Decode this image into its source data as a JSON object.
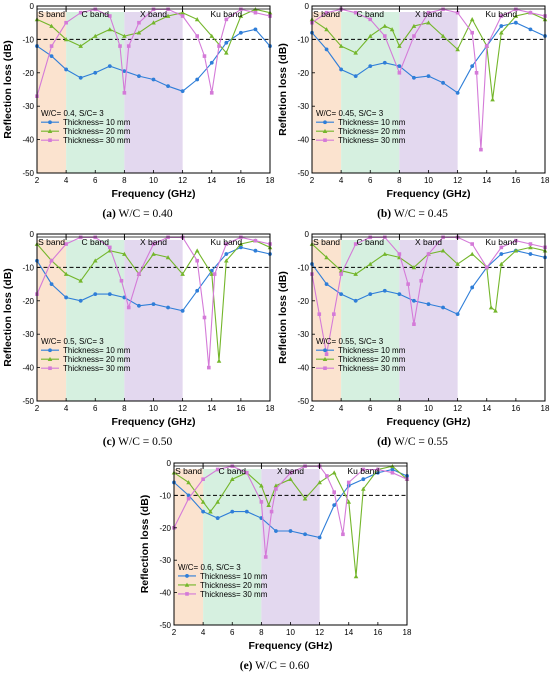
{
  "colors": {
    "s_band": "#fbe3cf",
    "c_band": "#d6f0e0",
    "x_band": "#e3d8ef",
    "t10": "#2f7ed8",
    "t20": "#74b62b",
    "t30": "#d47ad8",
    "ref": "#000000"
  },
  "chart_data": [
    {
      "id": "a",
      "type": "line",
      "caption_label": "(a)",
      "caption_text": "W/C = 0.40",
      "legend_title": "W/C= 0.4, S/C= 3",
      "xlabel": "Frequency (GHz)",
      "ylabel": "Reflection loss (dB)",
      "xlim": [
        2,
        18
      ],
      "ylim": [
        -50,
        0
      ],
      "xticks": [
        2,
        4,
        6,
        8,
        10,
        12,
        14,
        16,
        18
      ],
      "yticks": [
        0,
        -10,
        -20,
        -30,
        -40,
        -50
      ],
      "reference_line": -10,
      "bands": [
        {
          "name": "S band",
          "from": 2,
          "to": 4
        },
        {
          "name": "C band",
          "from": 4,
          "to": 8
        },
        {
          "name": "X band",
          "from": 8,
          "to": 12
        },
        {
          "name": "Ku band",
          "from": 12,
          "to": 18
        }
      ],
      "series": [
        {
          "name": "Thickness= 10 mm",
          "x": [
            2,
            3,
            4,
            5,
            6,
            7,
            8,
            9,
            10,
            11,
            12,
            13,
            14,
            15,
            16,
            17,
            18
          ],
          "y": [
            -12,
            -15,
            -19,
            -21.5,
            -20,
            -18,
            -19.5,
            -21,
            -22,
            -24,
            -25.5,
            -22,
            -17,
            -11,
            -8,
            -7,
            -12
          ]
        },
        {
          "name": "Thickness= 20 mm",
          "x": [
            2,
            3,
            4,
            5,
            6,
            7,
            8,
            9,
            10,
            11,
            12,
            13,
            14,
            15,
            16,
            17,
            18
          ],
          "y": [
            -4,
            -6,
            -10,
            -12,
            -9,
            -7,
            -9,
            -8,
            -5,
            -3,
            -2,
            -4,
            -9,
            -14,
            -3,
            -1,
            -2
          ]
        },
        {
          "name": "Thickness= 30 mm",
          "x": [
            2,
            3,
            4,
            5,
            6,
            7,
            7.7,
            8,
            8.3,
            9,
            10,
            11,
            12,
            13,
            13.5,
            14,
            14.5,
            15,
            16,
            17,
            18
          ],
          "y": [
            -27,
            -12,
            -5,
            -2,
            -1,
            -3,
            -12,
            -26,
            -12,
            -5,
            -1,
            -1,
            -3,
            -9,
            -15,
            -26,
            -12,
            -4,
            -1,
            -2,
            -3
          ]
        }
      ]
    },
    {
      "id": "b",
      "type": "line",
      "caption_label": "(b)",
      "caption_text": "W/C = 0.45",
      "legend_title": "W/C= 0.45, S/C= 3",
      "xlabel": "Frequency (GHz)",
      "ylabel": "Refletion loss (dB)",
      "xlim": [
        2,
        18
      ],
      "ylim": [
        -50,
        0
      ],
      "xticks": [
        2,
        4,
        6,
        8,
        10,
        12,
        14,
        16,
        18
      ],
      "yticks": [
        0,
        -10,
        -20,
        -30,
        -40,
        -50
      ],
      "reference_line": -10,
      "bands": [
        {
          "name": "S band",
          "from": 2,
          "to": 4
        },
        {
          "name": "C band",
          "from": 4,
          "to": 8
        },
        {
          "name": "X band",
          "from": 8,
          "to": 12
        },
        {
          "name": "Ku band",
          "from": 12,
          "to": 18
        }
      ],
      "series": [
        {
          "name": "Thickness= 10 mm",
          "x": [
            2,
            3,
            4,
            5,
            6,
            7,
            8,
            9,
            10,
            11,
            12,
            13,
            14,
            15,
            16,
            17,
            18
          ],
          "y": [
            -8,
            -13,
            -19,
            -21,
            -18,
            -17,
            -18,
            -21.5,
            -21,
            -23,
            -26,
            -18,
            -12,
            -6,
            -5,
            -7,
            -9
          ]
        },
        {
          "name": "Thickness= 20 mm",
          "x": [
            2,
            3,
            4,
            5,
            6,
            7,
            7.5,
            8,
            9,
            10,
            11,
            12,
            13,
            14,
            14.4,
            15,
            16,
            17,
            18
          ],
          "y": [
            -4,
            -7,
            -12,
            -14,
            -9,
            -6,
            -7,
            -12,
            -6,
            -5,
            -9,
            -13,
            -4,
            -12,
            -28,
            -8,
            -3,
            -2,
            -4
          ]
        },
        {
          "name": "Thickness= 30 mm",
          "x": [
            2,
            3,
            4,
            5,
            6,
            7,
            8,
            9,
            10,
            11,
            12,
            13,
            13.3,
            13.6,
            14,
            15,
            16,
            17,
            18
          ],
          "y": [
            -5,
            -2,
            -1,
            -2,
            -4,
            -9,
            -20,
            -9,
            -2,
            -1,
            -2,
            -8,
            -20,
            -43,
            -12,
            -3,
            -1,
            -2,
            -3
          ]
        }
      ]
    },
    {
      "id": "c",
      "type": "line",
      "caption_label": "(c)",
      "caption_text": "W/C = 0.50",
      "legend_title": "W/C= 0.5, S/C= 3",
      "xlabel": "Frequency (GHz)",
      "ylabel": "Reflection loss (dB)",
      "xlim": [
        2,
        18
      ],
      "ylim": [
        -50,
        0
      ],
      "xticks": [
        2,
        4,
        6,
        8,
        10,
        12,
        14,
        16,
        18
      ],
      "yticks": [
        0,
        -10,
        -20,
        -30,
        -40,
        -50
      ],
      "reference_line": -10,
      "bands": [
        {
          "name": "S band",
          "from": 2,
          "to": 4
        },
        {
          "name": "C band",
          "from": 4,
          "to": 8
        },
        {
          "name": "X band",
          "from": 8,
          "to": 12
        },
        {
          "name": "Ku band",
          "from": 12,
          "to": 18
        }
      ],
      "series": [
        {
          "name": "Thickness= 10 mm",
          "x": [
            2,
            3,
            4,
            5,
            6,
            7,
            8,
            9,
            10,
            11,
            12,
            13,
            14,
            15,
            16,
            17,
            18
          ],
          "y": [
            -8,
            -15,
            -19,
            -20,
            -18,
            -18,
            -19,
            -21.5,
            -21,
            -22,
            -23,
            -17,
            -11,
            -6,
            -4,
            -5,
            -6
          ]
        },
        {
          "name": "Thickness= 20 mm",
          "x": [
            2,
            3,
            4,
            5,
            6,
            7,
            8,
            9,
            10,
            11,
            12,
            13,
            14,
            14.5,
            15,
            16,
            17,
            18
          ],
          "y": [
            -3,
            -8,
            -12,
            -14,
            -8,
            -5,
            -6,
            -12,
            -6,
            -7,
            -12,
            -5,
            -12,
            -38,
            -8,
            -3,
            -2,
            -4
          ]
        },
        {
          "name": "Thickness= 30 mm",
          "x": [
            2,
            3,
            4,
            5,
            6,
            7,
            7.8,
            8.3,
            9,
            10,
            11,
            12,
            13,
            13.5,
            13.8,
            14.2,
            15,
            16,
            17,
            18
          ],
          "y": [
            -18,
            -8,
            -3,
            -1,
            -1,
            -4,
            -14,
            -22,
            -12,
            -3,
            -1,
            -1,
            -8,
            -25,
            -40,
            -12,
            -3,
            -1,
            -2,
            -3
          ]
        }
      ]
    },
    {
      "id": "d",
      "type": "line",
      "caption_label": "(d)",
      "caption_text": "W/C = 0.55",
      "legend_title": "W/C= 0.55, S/C= 3",
      "xlabel": "Frequency (GHz)",
      "ylabel": "Refletion loss (dB)",
      "xlim": [
        2,
        18
      ],
      "ylim": [
        -50,
        0
      ],
      "xticks": [
        2,
        4,
        6,
        8,
        10,
        12,
        14,
        16,
        18
      ],
      "yticks": [
        0,
        -10,
        -20,
        -30,
        -40,
        -50
      ],
      "reference_line": -10,
      "bands": [
        {
          "name": "S band",
          "from": 2,
          "to": 4
        },
        {
          "name": "C band",
          "from": 4,
          "to": 8
        },
        {
          "name": "X band",
          "from": 8,
          "to": 12
        },
        {
          "name": "Ku band",
          "from": 12,
          "to": 18
        }
      ],
      "series": [
        {
          "name": "Thickness= 10 mm",
          "x": [
            2,
            3,
            4,
            5,
            6,
            7,
            8,
            9,
            10,
            11,
            12,
            13,
            14,
            15,
            16,
            17,
            18
          ],
          "y": [
            -9,
            -15,
            -18,
            -20,
            -18,
            -17,
            -18,
            -20,
            -21,
            -22,
            -24,
            -16,
            -10,
            -6,
            -5,
            -6,
            -7
          ]
        },
        {
          "name": "Thickness= 20 mm",
          "x": [
            2,
            3,
            4,
            5,
            6,
            7,
            8,
            9,
            10,
            11,
            12,
            13,
            14,
            14.3,
            14.6,
            15,
            16,
            17,
            18
          ],
          "y": [
            -3,
            -7,
            -11,
            -12,
            -9,
            -6,
            -7,
            -10,
            -6,
            -5,
            -9,
            -6,
            -10,
            -22,
            -23,
            -9,
            -5,
            -4,
            -5
          ]
        },
        {
          "name": "Thickness= 30 mm",
          "x": [
            2,
            2.5,
            3,
            3.5,
            4,
            5,
            6,
            7,
            8,
            8.6,
            9,
            9.5,
            10,
            11,
            12,
            13,
            14,
            15,
            16,
            17,
            18
          ],
          "y": [
            -12,
            -24,
            -36,
            -24,
            -12,
            -3,
            -1,
            -1,
            -6,
            -15,
            -27,
            -14,
            -6,
            -1,
            -1,
            -3,
            -10,
            -4,
            -2,
            -3,
            -4
          ]
        }
      ]
    },
    {
      "id": "e",
      "type": "line",
      "caption_label": "(e)",
      "caption_text": "W/C = 0.60",
      "legend_title": "W/C= 0.6, S/C= 3",
      "xlabel": "Frequency (GHz)",
      "ylabel": "Reflection loss (dB)",
      "xlim": [
        2,
        18
      ],
      "ylim": [
        -50,
        0
      ],
      "xticks": [
        2,
        4,
        6,
        8,
        10,
        12,
        14,
        16,
        18
      ],
      "yticks": [
        0,
        -10,
        -20,
        -30,
        -40,
        -50
      ],
      "reference_line": -10,
      "bands": [
        {
          "name": "S band",
          "from": 2,
          "to": 4
        },
        {
          "name": "C band",
          "from": 4,
          "to": 8
        },
        {
          "name": "X band",
          "from": 8,
          "to": 12
        },
        {
          "name": "Ku band",
          "from": 12,
          "to": 18
        }
      ],
      "series": [
        {
          "name": "Thickness= 10 mm",
          "x": [
            2,
            3,
            4,
            5,
            6,
            7,
            8,
            9,
            10,
            11,
            12,
            13,
            14,
            15,
            16,
            17,
            18
          ],
          "y": [
            -6,
            -10,
            -15,
            -17,
            -15,
            -15,
            -17,
            -21,
            -21,
            -22,
            -23,
            -13,
            -7,
            -5,
            -3,
            -2,
            -4
          ]
        },
        {
          "name": "Thickness= 20 mm",
          "x": [
            2,
            3,
            4,
            4.5,
            5,
            6,
            7,
            8,
            8.5,
            9,
            10,
            11,
            12,
            13,
            14,
            14.5,
            15,
            16,
            17,
            18
          ],
          "y": [
            -3,
            -6,
            -12,
            -15,
            -12,
            -5,
            -3,
            -7,
            -13,
            -7,
            -5,
            -11,
            -6,
            -3,
            -12,
            -35,
            -8,
            -2,
            -1,
            -5
          ]
        },
        {
          "name": "Thickness= 30 mm",
          "x": [
            2,
            3,
            4,
            5,
            6,
            7,
            8,
            8.3,
            8.7,
            9,
            10,
            11,
            12,
            12.5,
            13,
            13.6,
            14,
            15,
            16,
            17,
            18
          ],
          "y": [
            -20,
            -11,
            -5,
            -2,
            -1,
            -3,
            -12,
            -29,
            -15,
            -8,
            -3,
            -1,
            -1,
            -4,
            -9,
            -22,
            -6,
            -2,
            -2,
            -3,
            -5
          ]
        }
      ]
    }
  ]
}
